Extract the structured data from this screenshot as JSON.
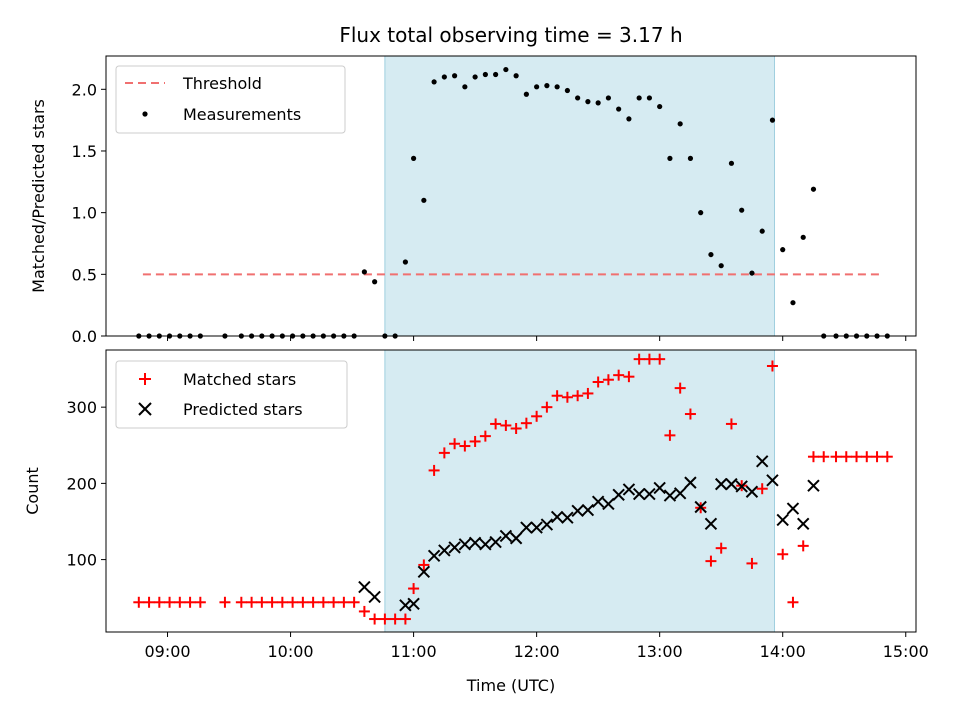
{
  "chart_data": [
    {
      "type": "scatter",
      "title": "Flux total observing time = 3.17 h",
      "xlabel": "",
      "ylabel": "Matched/Predicted stars",
      "xlim": [
        "08:30",
        "15:05"
      ],
      "ylim": [
        0,
        2.27
      ],
      "yticks": [
        0.0,
        0.5,
        1.0,
        1.5,
        2.0
      ],
      "ytick_labels": [
        "0.0",
        "0.5",
        "1.0",
        "1.5",
        "2.0"
      ],
      "shaded_span": [
        "10:46",
        "13:56"
      ],
      "legend_placement": "top-left",
      "threshold": {
        "name": "Threshold",
        "value": 0.5,
        "x_range": [
          "08:48",
          "14:48"
        ],
        "color": "#f07070"
      },
      "series": [
        {
          "name": "Measurements",
          "color": "#000000",
          "points": [
            [
              "08:46",
              0.0
            ],
            [
              "08:51",
              0.0
            ],
            [
              "08:56",
              0.0
            ],
            [
              "09:01",
              0.0
            ],
            [
              "09:06",
              0.0
            ],
            [
              "09:11",
              0.0
            ],
            [
              "09:16",
              0.0
            ],
            [
              "09:28",
              0.0
            ],
            [
              "09:36",
              0.0
            ],
            [
              "09:41",
              0.0
            ],
            [
              "09:46",
              0.0
            ],
            [
              "09:51",
              0.0
            ],
            [
              "09:56",
              0.0
            ],
            [
              "10:01",
              0.0
            ],
            [
              "10:06",
              0.0
            ],
            [
              "10:11",
              0.0
            ],
            [
              "10:16",
              0.0
            ],
            [
              "10:21",
              0.0
            ],
            [
              "10:26",
              0.0
            ],
            [
              "10:31",
              0.0
            ],
            [
              "10:36",
              0.52
            ],
            [
              "10:41",
              0.44
            ],
            [
              "10:46",
              0.0
            ],
            [
              "10:51",
              0.0
            ],
            [
              "10:56",
              0.6
            ],
            [
              "11:00",
              1.44
            ],
            [
              "11:05",
              1.1
            ],
            [
              "11:10",
              2.06
            ],
            [
              "11:15",
              2.1
            ],
            [
              "11:20",
              2.11
            ],
            [
              "11:25",
              2.02
            ],
            [
              "11:30",
              2.1
            ],
            [
              "11:35",
              2.12
            ],
            [
              "11:40",
              2.12
            ],
            [
              "11:45",
              2.16
            ],
            [
              "11:50",
              2.11
            ],
            [
              "11:55",
              1.96
            ],
            [
              "12:00",
              2.02
            ],
            [
              "12:05",
              2.03
            ],
            [
              "12:10",
              2.02
            ],
            [
              "12:15",
              1.99
            ],
            [
              "12:20",
              1.93
            ],
            [
              "12:25",
              1.9
            ],
            [
              "12:30",
              1.89
            ],
            [
              "12:35",
              1.93
            ],
            [
              "12:40",
              1.84
            ],
            [
              "12:45",
              1.76
            ],
            [
              "12:50",
              1.93
            ],
            [
              "12:55",
              1.93
            ],
            [
              "13:00",
              1.86
            ],
            [
              "13:05",
              1.44
            ],
            [
              "13:10",
              1.72
            ],
            [
              "13:15",
              1.44
            ],
            [
              "13:20",
              1.0
            ],
            [
              "13:25",
              0.66
            ],
            [
              "13:30",
              0.57
            ],
            [
              "13:35",
              1.4
            ],
            [
              "13:40",
              1.02
            ],
            [
              "13:45",
              0.51
            ],
            [
              "13:50",
              0.85
            ],
            [
              "13:55",
              1.75
            ],
            [
              "14:00",
              0.7
            ],
            [
              "14:05",
              0.27
            ],
            [
              "14:10",
              0.8
            ],
            [
              "14:15",
              1.19
            ],
            [
              "14:20",
              0.0
            ],
            [
              "14:26",
              0.0
            ],
            [
              "14:31",
              0.0
            ],
            [
              "14:36",
              0.0
            ],
            [
              "14:41",
              0.0
            ],
            [
              "14:46",
              0.0
            ],
            [
              "14:51",
              0.0
            ]
          ]
        }
      ]
    },
    {
      "type": "scatter",
      "title": "",
      "xlabel": "Time (UTC)",
      "ylabel": "Count",
      "xlim": [
        "08:30",
        "15:05"
      ],
      "ylim": [
        5,
        375
      ],
      "yticks": [
        100,
        200,
        300
      ],
      "ytick_labels": [
        "100",
        "200",
        "300"
      ],
      "xticks": [
        "09:00",
        "10:00",
        "11:00",
        "12:00",
        "13:00",
        "14:00",
        "15:00"
      ],
      "xtick_labels": [
        "09:00",
        "10:00",
        "11:00",
        "12:00",
        "13:00",
        "14:00",
        "15:00"
      ],
      "shaded_span": [
        "10:46",
        "13:56"
      ],
      "legend_placement": "top-left",
      "series": [
        {
          "name": "Matched stars",
          "color": "#ff0000",
          "marker": "plus",
          "points": [
            [
              "08:46",
              44
            ],
            [
              "08:51",
              44
            ],
            [
              "08:56",
              44
            ],
            [
              "09:01",
              44
            ],
            [
              "09:06",
              44
            ],
            [
              "09:11",
              44
            ],
            [
              "09:16",
              44
            ],
            [
              "09:28",
              44
            ],
            [
              "09:36",
              44
            ],
            [
              "09:41",
              44
            ],
            [
              "09:46",
              44
            ],
            [
              "09:51",
              44
            ],
            [
              "09:56",
              44
            ],
            [
              "10:01",
              44
            ],
            [
              "10:06",
              44
            ],
            [
              "10:11",
              44
            ],
            [
              "10:16",
              44
            ],
            [
              "10:21",
              44
            ],
            [
              "10:26",
              44
            ],
            [
              "10:31",
              44
            ],
            [
              "10:36",
              32
            ],
            [
              "10:41",
              22
            ],
            [
              "10:46",
              22
            ],
            [
              "10:51",
              22
            ],
            [
              "10:56",
              22
            ],
            [
              "11:00",
              62
            ],
            [
              "11:05",
              93
            ],
            [
              "11:10",
              217
            ],
            [
              "11:15",
              240
            ],
            [
              "11:20",
              252
            ],
            [
              "11:25",
              249
            ],
            [
              "11:30",
              255
            ],
            [
              "11:35",
              262
            ],
            [
              "11:40",
              278
            ],
            [
              "11:45",
              276
            ],
            [
              "11:50",
              272
            ],
            [
              "11:55",
              279
            ],
            [
              "12:00",
              288
            ],
            [
              "12:05",
              300
            ],
            [
              "12:10",
              315
            ],
            [
              "12:15",
              313
            ],
            [
              "12:20",
              315
            ],
            [
              "12:25",
              318
            ],
            [
              "12:30",
              333
            ],
            [
              "12:35",
              336
            ],
            [
              "12:40",
              342
            ],
            [
              "12:45",
              340
            ],
            [
              "12:50",
              363
            ],
            [
              "12:55",
              363
            ],
            [
              "13:00",
              363
            ],
            [
              "13:05",
              263
            ],
            [
              "13:10",
              325
            ],
            [
              "13:15",
              291
            ],
            [
              "13:20",
              168
            ],
            [
              "13:25",
              98
            ],
            [
              "13:30",
              115
            ],
            [
              "13:35",
              278
            ],
            [
              "13:40",
              197
            ],
            [
              "13:45",
              95
            ],
            [
              "13:50",
              193
            ],
            [
              "13:55",
              354
            ],
            [
              "14:00",
              107
            ],
            [
              "14:05",
              44
            ],
            [
              "14:10",
              118
            ],
            [
              "14:15",
              235
            ],
            [
              "14:20",
              235
            ],
            [
              "14:26",
              235
            ],
            [
              "14:31",
              235
            ],
            [
              "14:36",
              235
            ],
            [
              "14:41",
              235
            ],
            [
              "14:46",
              235
            ],
            [
              "14:51",
              235
            ]
          ]
        },
        {
          "name": "Predicted stars",
          "color": "#000000",
          "marker": "x",
          "points": [
            [
              "10:36",
              64
            ],
            [
              "10:41",
              51
            ],
            [
              "10:56",
              40
            ],
            [
              "11:00",
              42
            ],
            [
              "11:05",
              84
            ],
            [
              "11:10",
              105
            ],
            [
              "11:15",
              112
            ],
            [
              "11:20",
              116
            ],
            [
              "11:25",
              120
            ],
            [
              "11:30",
              122
            ],
            [
              "11:35",
              120
            ],
            [
              "11:40",
              123
            ],
            [
              "11:45",
              131
            ],
            [
              "11:50",
              128
            ],
            [
              "11:55",
              142
            ],
            [
              "12:00",
              142
            ],
            [
              "12:05",
              146
            ],
            [
              "12:10",
              156
            ],
            [
              "12:15",
              155
            ],
            [
              "12:20",
              164
            ],
            [
              "12:25",
              165
            ],
            [
              "12:30",
              176
            ],
            [
              "12:35",
              173
            ],
            [
              "12:40",
              185
            ],
            [
              "12:45",
              192
            ],
            [
              "12:50",
              186
            ],
            [
              "12:55",
              186
            ],
            [
              "13:00",
              194
            ],
            [
              "13:05",
              184
            ],
            [
              "13:10",
              187
            ],
            [
              "13:15",
              201
            ],
            [
              "13:20",
              169
            ],
            [
              "13:25",
              147
            ],
            [
              "13:30",
              199
            ],
            [
              "13:35",
              199
            ],
            [
              "13:40",
              196
            ],
            [
              "13:45",
              189
            ],
            [
              "13:50",
              229
            ],
            [
              "13:55",
              204
            ],
            [
              "14:00",
              152
            ],
            [
              "14:05",
              167
            ],
            [
              "14:10",
              147
            ],
            [
              "14:15",
              197
            ]
          ]
        }
      ]
    }
  ]
}
